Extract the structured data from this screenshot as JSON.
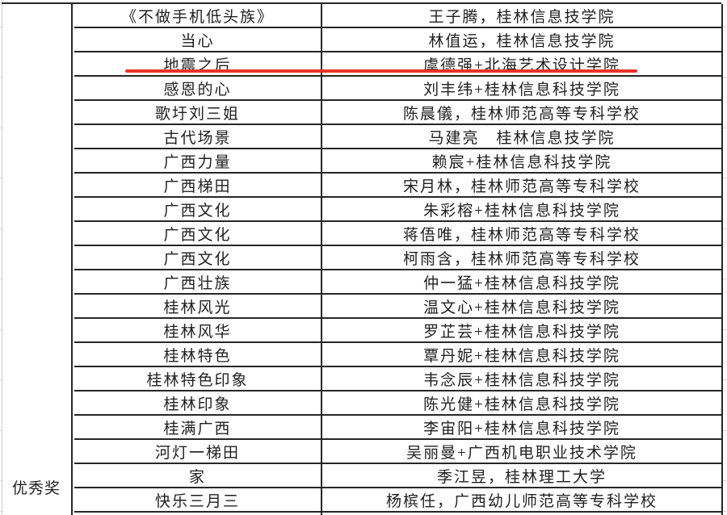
{
  "award_column": {
    "label": "优秀奖"
  },
  "annotation": {
    "type": "red-underline",
    "color": "#e8332b",
    "highlighted_row_index": 2
  },
  "table": {
    "rows": [
      {
        "title": "《不做手机低头族》",
        "author": "王子腾，桂林信息技学院"
      },
      {
        "title": "当心",
        "author": "林值运，桂林信息技学院"
      },
      {
        "title": "地震之后",
        "author": "虞德强+北海艺术设计学院"
      },
      {
        "title": "感恩的心",
        "author": "刘丰纬+桂林信息科技学院"
      },
      {
        "title": "歌圩刘三姐",
        "author": "陈晨儀，桂林师范高等专科学校"
      },
      {
        "title": "古代场景",
        "author": "马建亮　桂林信息技学院"
      },
      {
        "title": "广西力量",
        "author": "赖宸+桂林信息科技学院"
      },
      {
        "title": "广西梯田",
        "author": "宋月林，桂林师范高等专科学校"
      },
      {
        "title": "广西文化",
        "author": "朱彩榕+桂林信息科技学院"
      },
      {
        "title": "广西文化",
        "author": "蒋俉唯，桂林师范高等专科学校"
      },
      {
        "title": "广西文化",
        "author": "柯雨含，桂林师范高等专科学校"
      },
      {
        "title": "广西壮族",
        "author": "仲一猛+桂林信息科技学院"
      },
      {
        "title": "桂林风光",
        "author": "温文心+桂林信息科技学院"
      },
      {
        "title": "桂林风华",
        "author": "罗芷芸+桂林信息科技学院"
      },
      {
        "title": "桂林特色",
        "author": "覃丹妮+桂林信息科技学院"
      },
      {
        "title": "桂林特色印象",
        "author": "韦念辰+桂林信息科技学院"
      },
      {
        "title": "桂林印象",
        "author": "陈光健+桂林信息科技学院"
      },
      {
        "title": "桂满广西",
        "author": "李宙阳+桂林信息科技学院"
      },
      {
        "title": "河灯一梯田",
        "author": "吴丽曼+广西机电职业技术学院"
      },
      {
        "title": "家",
        "author": "季江昱，桂林理工大学"
      },
      {
        "title": "快乐三月三",
        "author": "杨槟任，广西幼儿师范高等专科学校"
      }
    ]
  }
}
